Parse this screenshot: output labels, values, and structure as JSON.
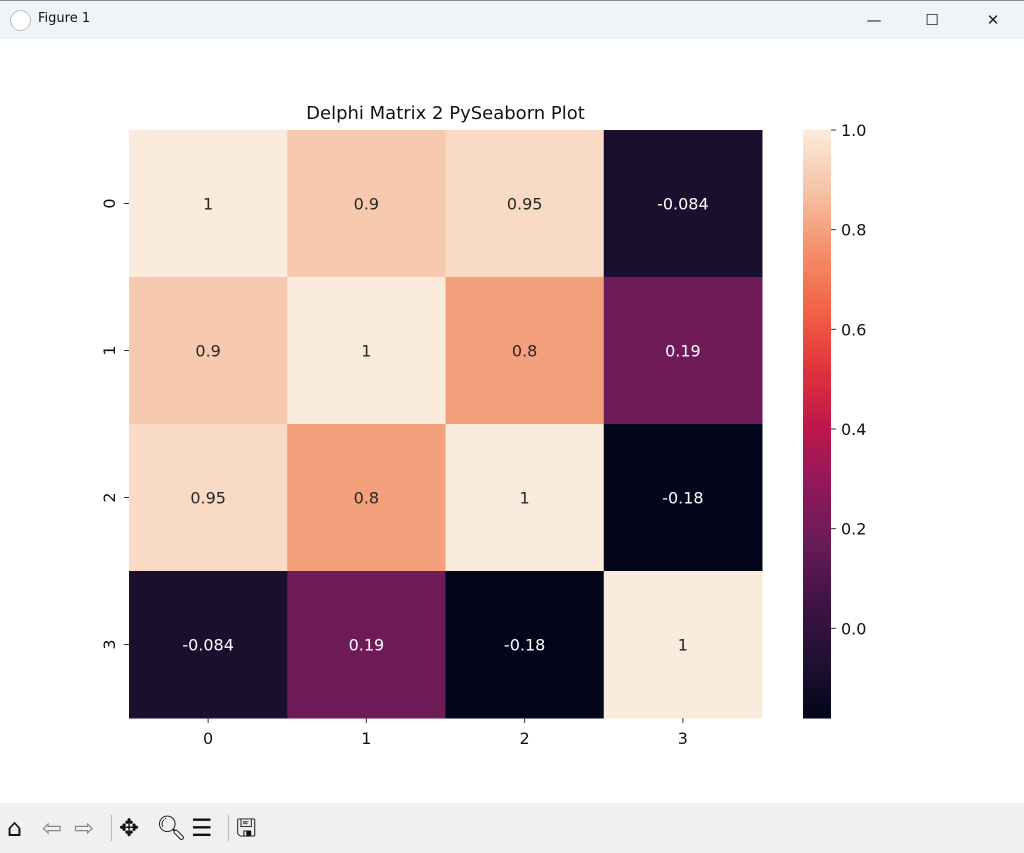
{
  "window": {
    "title": "Figure 1",
    "minimize": "—",
    "maximize": "☐",
    "close": "✕"
  },
  "toolbar": {
    "home": "home-icon",
    "back": "back-icon",
    "forward": "forward-icon",
    "pan": "pan-icon",
    "zoom": "zoom-icon",
    "configure": "configure-subplots-icon",
    "save": "save-icon"
  },
  "chart_data": {
    "type": "heatmap",
    "title": "Delphi Matrix 2 PySeaborn Plot",
    "x_labels": [
      "0",
      "1",
      "2",
      "3"
    ],
    "y_labels": [
      "0",
      "1",
      "2",
      "3"
    ],
    "values": [
      [
        1,
        0.9,
        0.95,
        -0.084
      ],
      [
        0.9,
        1,
        0.8,
        0.19
      ],
      [
        0.95,
        0.8,
        1,
        -0.18
      ],
      [
        -0.084,
        0.19,
        -0.18,
        1
      ]
    ],
    "annotations": [
      [
        "1",
        "0.9",
        "0.95",
        "-0.084"
      ],
      [
        "0.9",
        "1",
        "0.8",
        "0.19"
      ],
      [
        "0.95",
        "0.8",
        "1",
        "-0.18"
      ],
      [
        "-0.084",
        "0.19",
        "-0.18",
        "1"
      ]
    ],
    "colormap": "rocket",
    "vmin": -0.18,
    "vmax": 1.0,
    "colorbar_ticks": [
      "1.0",
      "0.8",
      "0.6",
      "0.4",
      "0.2",
      "0.0"
    ],
    "colorbar_tick_values": [
      1.0,
      0.8,
      0.6,
      0.4,
      0.2,
      0.0
    ]
  }
}
